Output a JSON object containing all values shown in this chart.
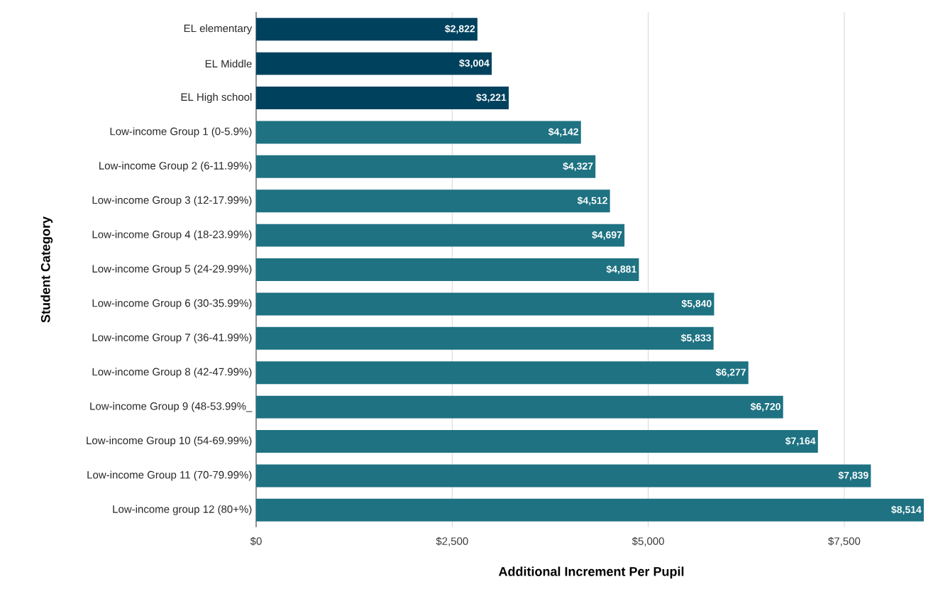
{
  "chart_data": {
    "type": "bar",
    "orientation": "horizontal",
    "xlabel": "Additional Increment Per Pupil",
    "ylabel": "Student Category",
    "categories": [
      "EL elementary",
      "EL Middle",
      "EL High school",
      "Low-income Group 1 (0-5.9%)",
      "Low-income Group 2 (6-11.99%)",
      "Low-income Group 3 (12-17.99%)",
      "Low-income Group 4 (18-23.99%)",
      "Low-income Group 5 (24-29.99%)",
      "Low-income Group 6 (30-35.99%)",
      "Low-income Group 7 (36-41.99%)",
      "Low-income Group 8 (42-47.99%)",
      "Low-income Group 9 (48-53.99%_",
      "Low-income Group 10 (54-69.99%)",
      "Low-income Group 11 (70-79.99%)",
      "Low-income group 12 (80+%)"
    ],
    "values": [
      2822,
      3004,
      3221,
      4142,
      4327,
      4512,
      4697,
      4881,
      5840,
      5833,
      6277,
      6720,
      7164,
      7839,
      8514
    ],
    "value_labels": [
      "$2,822",
      "$3,004",
      "$3,221",
      "$4,142",
      "$4,327",
      "$4,512",
      "$4,697",
      "$4,881",
      "$5,840",
      "$5,833",
      "$6,277",
      "$6,720",
      "$7,164",
      "$7,839",
      "$8,514"
    ],
    "colors": [
      "#00425e",
      "#00425e",
      "#00425e",
      "#1e7282",
      "#1e7282",
      "#1e7282",
      "#1e7282",
      "#1e7282",
      "#1e7282",
      "#1e7282",
      "#1e7282",
      "#1e7282",
      "#1e7282",
      "#1e7282",
      "#1e7282"
    ],
    "xlim": [
      0,
      8550
    ],
    "xticks": [
      {
        "value": 0,
        "label": "$0"
      },
      {
        "value": 2500,
        "label": "$2,500"
      },
      {
        "value": 5000,
        "label": "$5,000"
      },
      {
        "value": 7500,
        "label": "$7,500"
      }
    ],
    "grid": "x"
  }
}
